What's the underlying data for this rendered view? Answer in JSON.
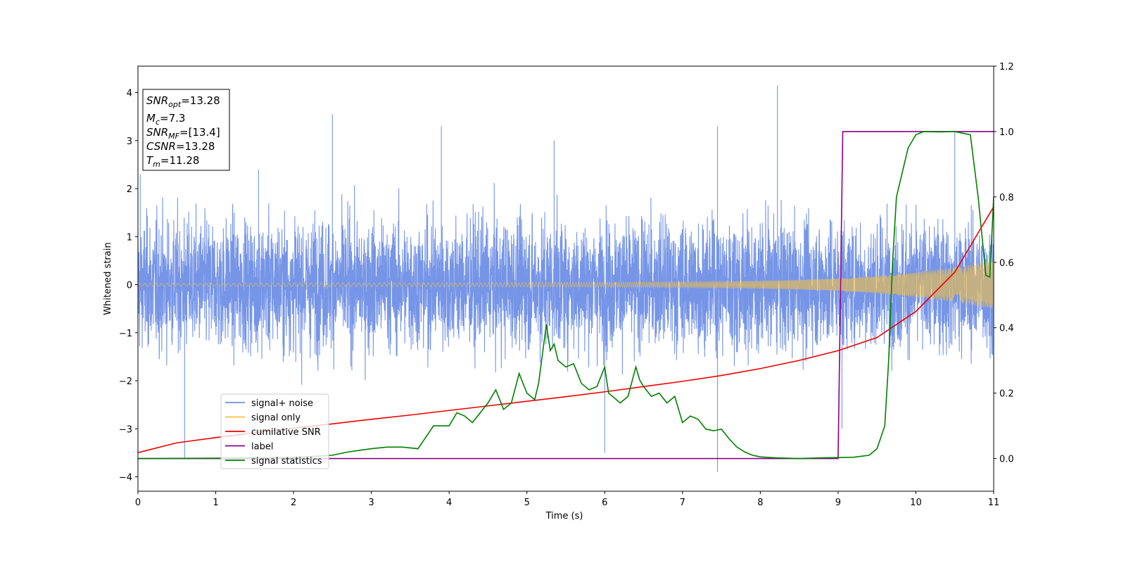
{
  "chart_data": {
    "type": "line",
    "xlabel": "Time (s)",
    "ylabel": "Whitened strain",
    "xlim": [
      0,
      11
    ],
    "ylim": [
      -4.3,
      4.55
    ],
    "ylim_right": [
      -0.1,
      1.2
    ],
    "x_ticks": [
      "0",
      "1",
      "2",
      "3",
      "4",
      "5",
      "6",
      "7",
      "8",
      "9",
      "10",
      "11"
    ],
    "y_ticks": [
      "−4",
      "−3",
      "−2",
      "−1",
      "0",
      "1",
      "2",
      "3",
      "4"
    ],
    "y_right_ticks": [
      "0.0",
      "0.2",
      "0.4",
      "0.6",
      "0.8",
      "1.0",
      "1.2"
    ],
    "grid": false,
    "legend_position": "lower-left",
    "annotation": {
      "snr_opt": {
        "base": "SNR",
        "sub": "opt",
        "value": "=13.28"
      },
      "mc": {
        "base": "M",
        "sub": "c",
        "value": "=7.3"
      },
      "snr_mf": {
        "base": "SNR",
        "sub": "MF",
        "value": "=[13.4]"
      },
      "csnr": {
        "base": "CSNR",
        "value": "=13.28"
      },
      "tm": {
        "base": "T",
        "sub": "m",
        "value": "=11.28"
      }
    },
    "series": [
      {
        "name": "signal+ noise",
        "color": "#6f8fe6",
        "axis": "left",
        "description_envelope": {
          "x": [
            0,
            1,
            2,
            3,
            4,
            5,
            6,
            7,
            8,
            9,
            10,
            11
          ],
          "typical_amplitude": 1.5,
          "peak_values": [
            [
              0.03,
              2.3
            ],
            [
              0.6,
              -3.6
            ],
            [
              1.55,
              2.4
            ],
            [
              2.5,
              3.55
            ],
            [
              3.9,
              3.3
            ],
            [
              5.35,
              3.0
            ],
            [
              6.0,
              -3.5
            ],
            [
              7.45,
              -3.9
            ],
            [
              7.45,
              3.3
            ],
            [
              8.22,
              4.15
            ],
            [
              9.05,
              -3.0
            ],
            [
              10.5,
              3.2
            ]
          ]
        }
      },
      {
        "name": "signal only",
        "color": "#f5c242",
        "axis": "left",
        "envelope": {
          "x": [
            0,
            2,
            4,
            6,
            7,
            8,
            8.5,
            9,
            9.5,
            10,
            10.5,
            11
          ],
          "amplitude": [
            0.03,
            0.035,
            0.04,
            0.05,
            0.06,
            0.08,
            0.1,
            0.13,
            0.18,
            0.26,
            0.36,
            0.5
          ]
        }
      },
      {
        "name": "cumilative SNR",
        "color": "#ee0000",
        "axis": "right",
        "x": [
          0,
          0.5,
          1,
          1.5,
          2,
          2.5,
          3,
          3.5,
          4,
          4.5,
          5,
          5.5,
          6,
          6.5,
          7,
          7.5,
          8,
          8.5,
          9,
          9.5,
          10,
          10.5,
          11
        ],
        "y": [
          0.018,
          0.048,
          0.064,
          0.079,
          0.093,
          0.106,
          0.12,
          0.133,
          0.147,
          0.161,
          0.175,
          0.189,
          0.204,
          0.22,
          0.236,
          0.254,
          0.275,
          0.3,
          0.33,
          0.37,
          0.45,
          0.57,
          0.77
        ]
      },
      {
        "name": "label",
        "color": "#8b008b",
        "axis": "right",
        "x": [
          0,
          9.0,
          9.06,
          11
        ],
        "y": [
          0,
          0,
          1,
          1
        ]
      },
      {
        "name": "signal statistics",
        "color": "#008000",
        "axis": "right",
        "x": [
          0,
          1,
          2,
          2.5,
          2.7,
          3.0,
          3.2,
          3.4,
          3.6,
          3.8,
          4.0,
          4.1,
          4.2,
          4.3,
          4.5,
          4.6,
          4.7,
          4.8,
          4.9,
          5.0,
          5.1,
          5.15,
          5.2,
          5.25,
          5.3,
          5.35,
          5.4,
          5.5,
          5.6,
          5.7,
          5.8,
          5.9,
          6.0,
          6.05,
          6.1,
          6.2,
          6.3,
          6.4,
          6.45,
          6.5,
          6.6,
          6.7,
          6.8,
          6.9,
          7.0,
          7.1,
          7.2,
          7.3,
          7.4,
          7.5,
          7.6,
          7.7,
          7.8,
          7.9,
          8.0,
          8.2,
          8.5,
          8.8,
          9.0,
          9.2,
          9.4,
          9.5,
          9.6,
          9.65,
          9.7,
          9.75,
          9.8,
          9.85,
          9.9,
          9.95,
          10.0,
          10.1,
          10.3,
          10.5,
          10.7,
          10.8,
          10.9,
          10.95,
          11.0
        ],
        "y": [
          0,
          0.001,
          0.003,
          0.01,
          0.02,
          0.03,
          0.035,
          0.035,
          0.03,
          0.1,
          0.1,
          0.14,
          0.13,
          0.11,
          0.17,
          0.21,
          0.15,
          0.17,
          0.26,
          0.2,
          0.18,
          0.23,
          0.32,
          0.41,
          0.33,
          0.35,
          0.3,
          0.28,
          0.29,
          0.23,
          0.21,
          0.22,
          0.28,
          0.2,
          0.19,
          0.17,
          0.19,
          0.28,
          0.24,
          0.22,
          0.19,
          0.2,
          0.17,
          0.19,
          0.11,
          0.13,
          0.12,
          0.09,
          0.085,
          0.09,
          0.06,
          0.035,
          0.02,
          0.01,
          0.005,
          0.002,
          0.0,
          0.002,
          0.003,
          0.004,
          0.01,
          0.03,
          0.1,
          0.3,
          0.6,
          0.8,
          0.85,
          0.9,
          0.95,
          0.97,
          0.99,
          1.0,
          0.999,
          1.0,
          0.99,
          0.8,
          0.56,
          0.555,
          0.8
        ]
      }
    ]
  }
}
